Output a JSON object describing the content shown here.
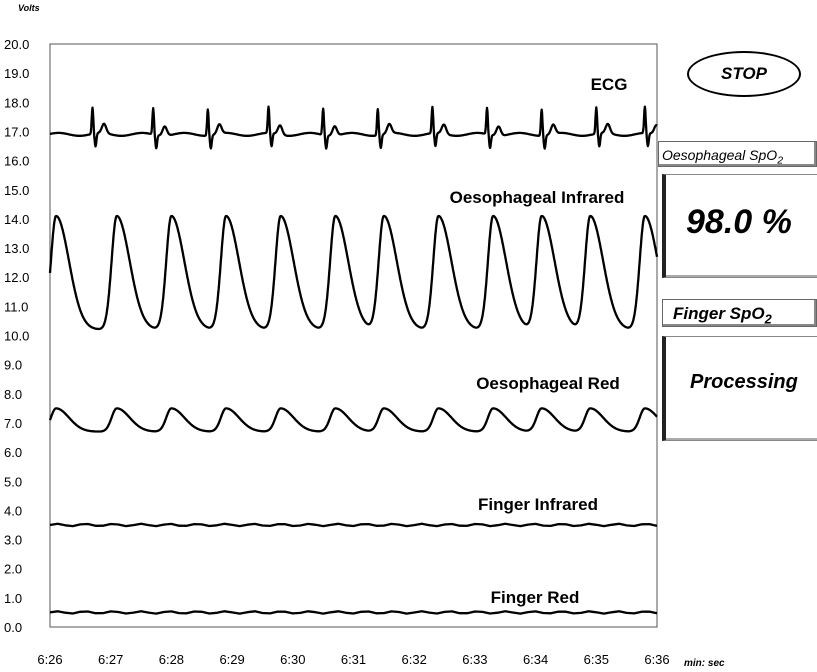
{
  "chart_data": {
    "type": "line",
    "ylabel_unit": "Volts",
    "xlabel_unit": "min: sec",
    "ylim": [
      0,
      20
    ],
    "yticks": [
      "0.0",
      "1.0",
      "2.0",
      "3.0",
      "4.0",
      "5.0",
      "6.0",
      "7.0",
      "8.0",
      "9.0",
      "10.0",
      "11.0",
      "12.0",
      "13.0",
      "14.0",
      "15.0",
      "16.0",
      "17.0",
      "18.0",
      "19.0",
      "20.0"
    ],
    "xticks": [
      "6:26",
      "6:27",
      "6:28",
      "6:29",
      "6:30",
      "6:31",
      "6:32",
      "6:33",
      "6:34",
      "6:35",
      "6:36"
    ],
    "xlim_seconds": [
      386,
      396
    ],
    "series": [
      {
        "name": "ECG",
        "baseline": 16.9,
        "peak": 17.8,
        "beats_at_seconds": [
          386.7,
          387.7,
          388.6,
          389.6,
          390.5,
          391.4,
          392.3,
          393.2,
          394.1,
          395.0,
          395.8
        ]
      },
      {
        "name": "Oesophageal Infrared",
        "min": 10.2,
        "max": 14.1,
        "peaks_at_seconds": [
          386.1,
          387.1,
          388.0,
          388.9,
          389.8,
          390.7,
          391.5,
          392.4,
          393.3,
          394.1,
          394.9,
          395.8
        ]
      },
      {
        "name": "Oesophageal Red",
        "min": 6.7,
        "max": 7.5,
        "peaks_at_seconds": [
          386.1,
          387.1,
          388.0,
          388.9,
          389.8,
          390.7,
          391.5,
          392.4,
          393.3,
          394.1,
          394.9,
          395.8
        ]
      },
      {
        "name": "Finger Infrared",
        "value": 3.5
      },
      {
        "name": "Finger Red",
        "value": 0.5
      }
    ]
  },
  "controls": {
    "stop_label": "STOP",
    "oeso_title_main": "Oesophageal SpO",
    "oeso_title_sub": "2",
    "oeso_value": "98.0  %",
    "finger_title_main": "Finger  SpO",
    "finger_title_sub": "2",
    "finger_value": "Processing"
  }
}
